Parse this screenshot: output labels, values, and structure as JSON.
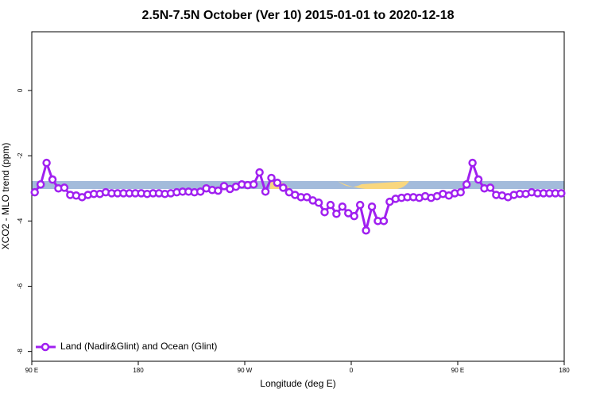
{
  "chart_data": {
    "type": "line",
    "title": "2.5N-7.5N October (Ver 10)   2015-01-01 to 2020-12-18",
    "x_label": "Longitude (deg E)",
    "y_label": "XCO2 - MLO trend (ppm)",
    "xlim": [
      90,
      540
    ],
    "ylim": [
      -8.3,
      1.8
    ],
    "xticks": [
      {
        "value": 90,
        "label": "90 E"
      },
      {
        "value": 180,
        "label": "180"
      },
      {
        "value": 270,
        "label": "90 W"
      },
      {
        "value": 360,
        "label": "0"
      },
      {
        "value": 450,
        "label": "90 E"
      },
      {
        "value": 540,
        "label": "180"
      }
    ],
    "yticks": [
      -8,
      -6,
      -4,
      -2,
      0
    ],
    "legend": "bottom-left",
    "x": [
      92.5,
      97.5,
      102.5,
      107.5,
      112.5,
      117.5,
      122.5,
      127.5,
      132.5,
      137.5,
      142.5,
      147.5,
      152.5,
      157.5,
      162.5,
      167.5,
      172.5,
      177.5,
      182.5,
      187.5,
      192.5,
      197.5,
      202.5,
      207.5,
      212.5,
      217.5,
      222.5,
      227.5,
      232.5,
      237.5,
      242.5,
      247.5,
      252.5,
      257.5,
      262.5,
      267.5,
      272.5,
      277.5,
      282.5,
      287.5,
      292.5,
      297.5,
      302.5,
      307.5,
      312.5,
      317.5,
      322.5,
      327.5,
      332.5,
      337.5,
      342.5,
      347.5,
      352.5,
      357.5,
      362.5,
      367.5,
      372.5,
      377.5,
      382.5,
      387.5,
      392.5,
      397.5,
      402.5,
      407.5,
      412.5,
      417.5,
      422.5,
      427.5,
      432.5,
      437.5,
      442.5,
      447.5,
      452.5,
      457.5,
      462.5,
      467.5,
      472.5,
      477.5,
      482.5,
      487.5,
      492.5,
      497.5,
      502.5,
      507.5,
      512.5,
      517.5,
      522.5,
      527.5,
      532.5,
      537.5
    ],
    "series": [
      {
        "name": "Land (Nadir&Glint) and Ocean (Glint)",
        "color": "#a020f0",
        "values": [
          -3.12,
          -2.88,
          -2.22,
          -2.73,
          -3.0,
          -2.98,
          -3.2,
          -3.22,
          -3.27,
          -3.2,
          -3.17,
          -3.17,
          -3.12,
          -3.15,
          -3.15,
          -3.15,
          -3.15,
          -3.15,
          -3.15,
          -3.17,
          -3.15,
          -3.15,
          -3.17,
          -3.15,
          -3.12,
          -3.1,
          -3.1,
          -3.12,
          -3.1,
          -3.0,
          -3.05,
          -3.07,
          -2.93,
          -3.02,
          -2.95,
          -2.88,
          -2.9,
          -2.88,
          -2.51,
          -3.1,
          -2.68,
          -2.83,
          -2.98,
          -3.12,
          -3.2,
          -3.27,
          -3.27,
          -3.37,
          -3.44,
          -3.73,
          -3.51,
          -3.78,
          -3.56,
          -3.76,
          -3.85,
          -3.51,
          -4.29,
          -3.56,
          -4.0,
          -4.0,
          -3.41,
          -3.32,
          -3.29,
          -3.27,
          -3.27,
          -3.29,
          -3.24,
          -3.29,
          -3.24,
          -3.17,
          -3.22,
          -3.15,
          -3.12,
          -2.88,
          -2.22,
          -2.73,
          -3.0,
          -2.98,
          -3.2,
          -3.22,
          -3.27,
          -3.2,
          -3.17,
          -3.17,
          -3.12,
          -3.15,
          -3.15,
          -3.15,
          -3.15,
          -3.15
        ]
      }
    ]
  }
}
